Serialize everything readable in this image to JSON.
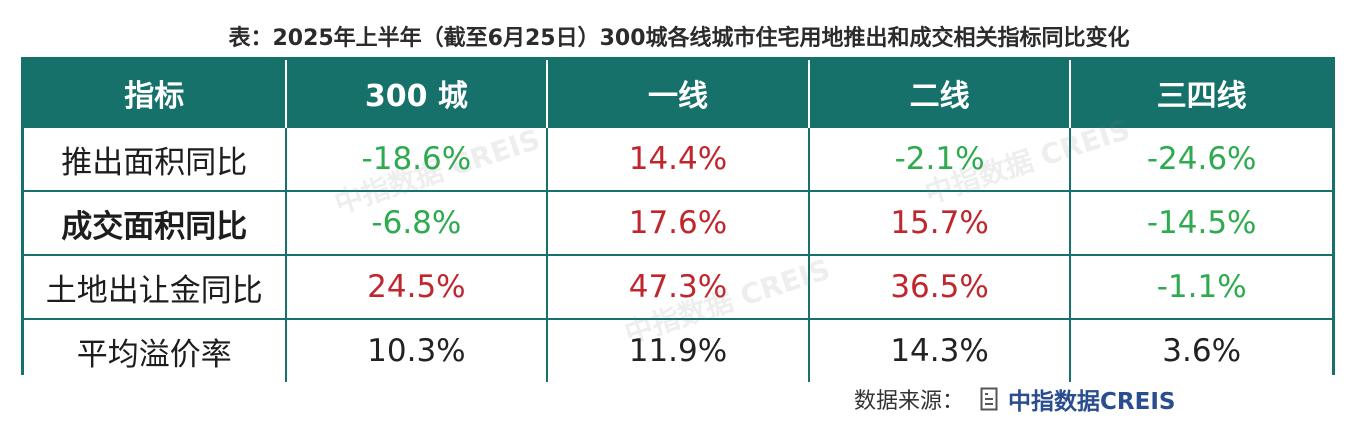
{
  "title": "表：2025年上半年（截至6月25日）300城各线城市住宅用地推出和成交相关指标同比变化",
  "table": {
    "headers": [
      "指标",
      "300 城",
      "一线",
      "二线",
      "三四线"
    ],
    "rows": [
      {
        "label": "推出面积同比",
        "bold": false,
        "cells": [
          {
            "value": "-18.6%",
            "tone": "neg"
          },
          {
            "value": "14.4%",
            "tone": "pos"
          },
          {
            "value": "-2.1%",
            "tone": "neg"
          },
          {
            "value": "-24.6%",
            "tone": "neg"
          }
        ]
      },
      {
        "label": "成交面积同比",
        "bold": true,
        "cells": [
          {
            "value": "-6.8%",
            "tone": "neg"
          },
          {
            "value": "17.6%",
            "tone": "pos"
          },
          {
            "value": "15.7%",
            "tone": "pos"
          },
          {
            "value": "-14.5%",
            "tone": "neg"
          }
        ]
      },
      {
        "label": "土地出让金同比",
        "bold": false,
        "cells": [
          {
            "value": "24.5%",
            "tone": "pos"
          },
          {
            "value": "47.3%",
            "tone": "pos"
          },
          {
            "value": "36.5%",
            "tone": "pos"
          },
          {
            "value": "-1.1%",
            "tone": "neg"
          }
        ]
      },
      {
        "label": "平均溢价率",
        "bold": false,
        "cells": [
          {
            "value": "10.3%",
            "tone": "neu"
          },
          {
            "value": "11.9%",
            "tone": "neu"
          },
          {
            "value": "14.3%",
            "tone": "neu"
          },
          {
            "value": "3.6%",
            "tone": "neu"
          }
        ]
      }
    ]
  },
  "source": {
    "label": "数据来源：",
    "icon": "document-icon",
    "brand": "中指数据CREIS"
  },
  "watermark": "中指数据 CREIS",
  "colors": {
    "header_bg": "#17716b",
    "positive": "#c0262d",
    "negative": "#2eaa4f",
    "brand": "#2a4d8f"
  }
}
